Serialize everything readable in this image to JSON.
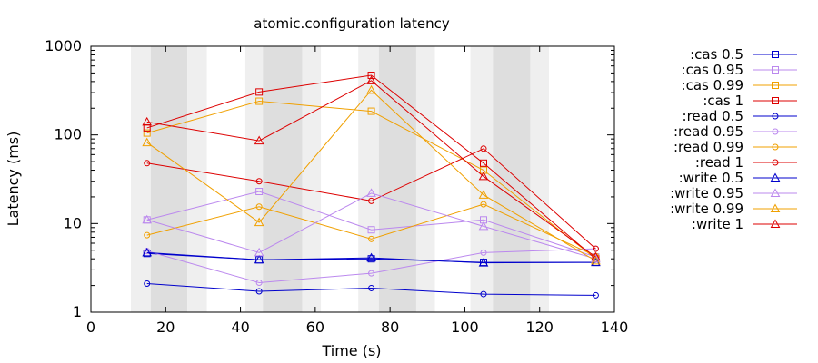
{
  "chart_data": {
    "type": "line",
    "title": "atomic.configuration latency",
    "xlabel": "Time (s)",
    "ylabel": "Latency (ms)",
    "xlim": [
      0,
      140
    ],
    "ylim": [
      1,
      1000
    ],
    "yscale": "log",
    "x_ticks": [
      0,
      20,
      40,
      60,
      80,
      100,
      120,
      140
    ],
    "y_ticks": [
      1,
      10,
      100,
      1000
    ],
    "x_tick_labels": [
      "0",
      "20",
      "40",
      "60",
      "80",
      "100",
      "120",
      "140"
    ],
    "y_tick_labels": [
      "1",
      "10",
      "100",
      "1000"
    ],
    "legend_position": "right",
    "shaded_bands": [
      {
        "from": 10.7,
        "to": 16,
        "shade": "light"
      },
      {
        "from": 16,
        "to": 25.8,
        "shade": "dark"
      },
      {
        "from": 25.8,
        "to": 31,
        "shade": "light"
      },
      {
        "from": 41.3,
        "to": 46,
        "shade": "light"
      },
      {
        "from": 46,
        "to": 56.5,
        "shade": "dark"
      },
      {
        "from": 56.5,
        "to": 61.5,
        "shade": "light"
      },
      {
        "from": 71.5,
        "to": 77,
        "shade": "light"
      },
      {
        "from": 77,
        "to": 87,
        "shade": "dark"
      },
      {
        "from": 87,
        "to": 92,
        "shade": "light"
      },
      {
        "from": 101.5,
        "to": 107.5,
        "shade": "light"
      },
      {
        "from": 107.5,
        "to": 117.5,
        "shade": "dark"
      },
      {
        "from": 117.5,
        "to": 122.5,
        "shade": "light"
      }
    ],
    "band_colors": {
      "light": "#efefef",
      "dark": "#dedede"
    },
    "series": [
      {
        "name": ":cas 0.5",
        "color": "#0000cc",
        "marker": "square",
        "x": [
          15,
          45,
          75,
          105,
          135
        ],
        "y": [
          4.6,
          3.9,
          4.0,
          3.65,
          3.65
        ]
      },
      {
        "name": ":cas 0.95",
        "color": "#bb88ee",
        "marker": "square",
        "x": [
          15,
          45,
          75,
          105,
          135
        ],
        "y": [
          11,
          23,
          8.5,
          11,
          4.2
        ]
      },
      {
        "name": ":cas 0.99",
        "color": "#f0a000",
        "marker": "square",
        "x": [
          15,
          45,
          75,
          105,
          135
        ],
        "y": [
          105,
          240,
          185,
          40,
          4.0
        ]
      },
      {
        "name": ":cas 1",
        "color": "#dd0000",
        "marker": "square",
        "x": [
          15,
          45,
          75,
          105,
          135
        ],
        "y": [
          120,
          305,
          470,
          48,
          4.0
        ]
      },
      {
        "name": ":read 0.5",
        "color": "#0000cc",
        "marker": "circle",
        "x": [
          15,
          45,
          75,
          105,
          135
        ],
        "y": [
          2.1,
          1.72,
          1.87,
          1.6,
          1.55
        ]
      },
      {
        "name": ":read 0.95",
        "color": "#bb88ee",
        "marker": "circle",
        "x": [
          15,
          45,
          75,
          105,
          135
        ],
        "y": [
          4.9,
          2.15,
          2.75,
          4.7,
          5.2
        ]
      },
      {
        "name": ":read 0.99",
        "color": "#f0a000",
        "marker": "circle",
        "x": [
          15,
          45,
          75,
          105,
          135
        ],
        "y": [
          7.4,
          15.5,
          6.7,
          16.5,
          4.3
        ]
      },
      {
        "name": ":read 1",
        "color": "#dd0000",
        "marker": "circle",
        "x": [
          15,
          45,
          75,
          105,
          135
        ],
        "y": [
          48,
          30,
          18,
          70,
          5.2
        ]
      },
      {
        "name": ":write 0.5",
        "color": "#0000cc",
        "marker": "triangle",
        "x": [
          15,
          45,
          75,
          105,
          135
        ],
        "y": [
          4.7,
          3.9,
          4.1,
          3.6,
          3.65
        ]
      },
      {
        "name": ":write 0.95",
        "color": "#bb88ee",
        "marker": "triangle",
        "x": [
          15,
          45,
          75,
          105,
          135
        ],
        "y": [
          11,
          4.7,
          22,
          9.3,
          4.0
        ]
      },
      {
        "name": ":write 0.99",
        "color": "#f0a000",
        "marker": "triangle",
        "x": [
          15,
          45,
          75,
          105,
          135
        ],
        "y": [
          82,
          10.3,
          320,
          21,
          3.8
        ]
      },
      {
        "name": ":write 1",
        "color": "#dd0000",
        "marker": "triangle",
        "x": [
          15,
          45,
          75,
          105,
          135
        ],
        "y": [
          140,
          86,
          410,
          34,
          4.2
        ]
      }
    ]
  }
}
